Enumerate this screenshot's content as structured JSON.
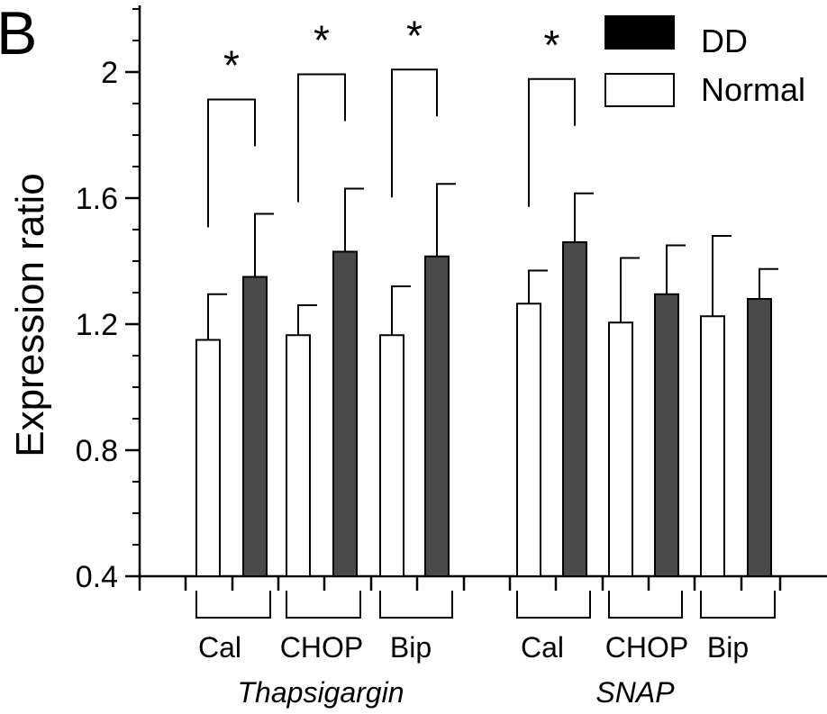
{
  "panel_label": "B",
  "chart_data": {
    "type": "bar",
    "ylabel": "Expression ratio",
    "ylim": [
      0.4,
      2.2
    ],
    "yticks": [
      "0.4",
      "0.8",
      "1.2",
      "1.6",
      "2"
    ],
    "legend": {
      "placement": "top-right",
      "entries": [
        "DD",
        "Normal"
      ]
    },
    "series": [
      {
        "name": "Normal",
        "color": "#ffffff",
        "values": [
          1.15,
          1.165,
          1.165,
          1.265,
          1.205,
          1.225
        ],
        "errors": [
          0.145,
          0.095,
          0.155,
          0.105,
          0.205,
          0.255
        ]
      },
      {
        "name": "DD",
        "color": "#4a4a4a",
        "values": [
          1.35,
          1.43,
          1.415,
          1.46,
          1.295,
          1.28
        ],
        "errors": [
          0.2,
          0.2,
          0.23,
          0.155,
          0.155,
          0.095
        ]
      }
    ],
    "groups": [
      {
        "name": "Thapsigargin",
        "categories": [
          "Cal",
          "CHOP",
          "Bip"
        ],
        "significant": [
          true,
          true,
          true
        ]
      },
      {
        "name": "SNAP",
        "categories": [
          "Cal",
          "CHOP",
          "Bip"
        ],
        "significant": [
          true,
          false,
          false
        ]
      }
    ],
    "significance_marker": "*"
  }
}
